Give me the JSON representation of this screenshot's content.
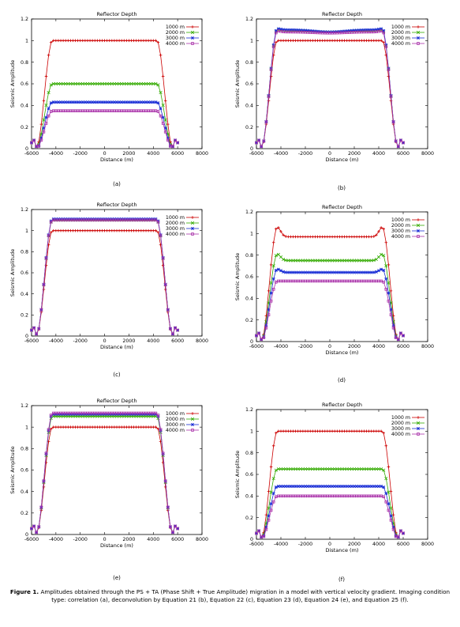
{
  "caption": {
    "label": "Figure 1.",
    "text": "Amplitudes obtained through the PS + TA (Phase Shift + True Amplitude) migration in a model with vertical velocity gradient. Imaging condition type: correlation (a), deconvolution by Equation 21 (b), Equation 22 (c), Equation 23 (d), Equation 24 (e), and Equation 25 (f)."
  },
  "colors": {
    "1000 m": "#cc0000",
    "2000 m": "#33aa00",
    "3000 m": "#1a2ed6",
    "4000 m": "#aa33aa"
  },
  "chart_data": [
    {
      "panel_label": "(a)",
      "type": "line",
      "title": "Reflector Depth",
      "xlabel": "Distance (m)",
      "ylabel": "Seismic Amplitude",
      "xlim": [
        -6000,
        8000
      ],
      "ylim": [
        0,
        1.2
      ],
      "xticks": [
        -6000,
        -4000,
        -2000,
        0,
        2000,
        4000,
        6000,
        8000
      ],
      "yticks": [
        0,
        0.2,
        0.4,
        0.6,
        0.8,
        1,
        1.2
      ],
      "legend_position": "top-right",
      "series": [
        {
          "name": "1000 m",
          "plateau": 1.0,
          "edge_peak": 0,
          "center_dip": 0
        },
        {
          "name": "2000 m",
          "plateau": 0.6,
          "edge_peak": 0,
          "center_dip": 0
        },
        {
          "name": "3000 m",
          "plateau": 0.43,
          "edge_peak": 0,
          "center_dip": 0
        },
        {
          "name": "4000 m",
          "plateau": 0.35,
          "edge_peak": 0,
          "center_dip": 0
        }
      ]
    },
    {
      "panel_label": "(b)",
      "type": "line",
      "title": "Reflector Depth",
      "xlabel": "Distance (m)",
      "ylabel": "Seismic Amplitude",
      "xlim": [
        -6000,
        8000
      ],
      "ylim": [
        0,
        1.2
      ],
      "xticks": [
        -6000,
        -4000,
        -2000,
        0,
        2000,
        4000,
        6000,
        8000
      ],
      "yticks": [
        0,
        0.2,
        0.4,
        0.6,
        0.8,
        1,
        1.2
      ],
      "legend_position": "top-right",
      "series": [
        {
          "name": "1000 m",
          "plateau": 1.0,
          "edge_peak": 0,
          "center_dip": 0
        },
        {
          "name": "2000 m",
          "plateau": 1.09,
          "edge_peak": 0.01,
          "center_dip": 0.01
        },
        {
          "name": "3000 m",
          "plateau": 1.1,
          "edge_peak": 0.01,
          "center_dip": 0.02
        },
        {
          "name": "4000 m",
          "plateau": 1.08,
          "edge_peak": 0.01,
          "center_dip": 0.01
        }
      ]
    },
    {
      "panel_label": "(c)",
      "type": "line",
      "title": "Reflector Depth",
      "xlabel": "Distance (m)",
      "ylabel": "Seismic Amplitude",
      "xlim": [
        -6000,
        8000
      ],
      "ylim": [
        0,
        1.2
      ],
      "xticks": [
        -6000,
        -4000,
        -2000,
        0,
        2000,
        4000,
        6000,
        8000
      ],
      "yticks": [
        0,
        0.2,
        0.4,
        0.6,
        0.8,
        1,
        1.2
      ],
      "legend_position": "top-right",
      "series": [
        {
          "name": "1000 m",
          "plateau": 1.0,
          "edge_peak": 0,
          "center_dip": 0
        },
        {
          "name": "2000 m",
          "plateau": 1.1,
          "edge_peak": 0,
          "center_dip": 0
        },
        {
          "name": "3000 m",
          "plateau": 1.11,
          "edge_peak": 0,
          "center_dip": 0
        },
        {
          "name": "4000 m",
          "plateau": 1.1,
          "edge_peak": 0,
          "center_dip": 0
        }
      ]
    },
    {
      "panel_label": "(d)",
      "type": "line",
      "title": "Reflector Depth",
      "xlabel": "Distance (m)",
      "ylabel": "Seismic Amplitude",
      "xlim": [
        -6000,
        8000
      ],
      "ylim": [
        0,
        1.2
      ],
      "xticks": [
        -6000,
        -4000,
        -2000,
        0,
        2000,
        4000,
        6000,
        8000
      ],
      "yticks": [
        0,
        0.2,
        0.4,
        0.6,
        0.8,
        1,
        1.2
      ],
      "legend_position": "top-right",
      "series": [
        {
          "name": "1000 m",
          "plateau": 0.97,
          "edge_peak": 0.09,
          "center_dip": 0
        },
        {
          "name": "2000 m",
          "plateau": 0.75,
          "edge_peak": 0.06,
          "center_dip": 0
        },
        {
          "name": "3000 m",
          "plateau": 0.64,
          "edge_peak": 0.03,
          "center_dip": 0
        },
        {
          "name": "4000 m",
          "plateau": 0.56,
          "edge_peak": 0.0,
          "center_dip": 0
        }
      ]
    },
    {
      "panel_label": "(e)",
      "type": "line",
      "title": "Reflector Depth",
      "xlabel": "Distance (m)",
      "ylabel": "Seismic Amplitude",
      "xlim": [
        -6000,
        8000
      ],
      "ylim": [
        0,
        1.2
      ],
      "xticks": [
        -6000,
        -4000,
        -2000,
        0,
        2000,
        4000,
        6000,
        8000
      ],
      "yticks": [
        0,
        0.2,
        0.4,
        0.6,
        0.8,
        1,
        1.2
      ],
      "legend_position": "top-right",
      "series": [
        {
          "name": "1000 m",
          "plateau": 1.0,
          "edge_peak": 0,
          "center_dip": 0
        },
        {
          "name": "2000 m",
          "plateau": 1.1,
          "edge_peak": 0,
          "center_dip": 0
        },
        {
          "name": "3000 m",
          "plateau": 1.12,
          "edge_peak": 0,
          "center_dip": 0
        },
        {
          "name": "4000 m",
          "plateau": 1.13,
          "edge_peak": 0,
          "center_dip": 0
        }
      ]
    },
    {
      "panel_label": "(f)",
      "type": "line",
      "title": "Reflector Depth",
      "xlabel": "Distance (m)",
      "ylabel": "Seismic Amplitude",
      "xlim": [
        -6000,
        8000
      ],
      "ylim": [
        0,
        1.2
      ],
      "xticks": [
        -6000,
        -4000,
        -2000,
        0,
        2000,
        4000,
        6000,
        8000
      ],
      "yticks": [
        0,
        0.2,
        0.4,
        0.6,
        0.8,
        1,
        1.2
      ],
      "legend_position": "top-right",
      "series": [
        {
          "name": "1000 m",
          "plateau": 1.0,
          "edge_peak": 0,
          "center_dip": 0
        },
        {
          "name": "2000 m",
          "plateau": 0.65,
          "edge_peak": 0,
          "center_dip": 0
        },
        {
          "name": "3000 m",
          "plateau": 0.49,
          "edge_peak": 0,
          "center_dip": 0
        },
        {
          "name": "4000 m",
          "plateau": 0.4,
          "edge_peak": 0,
          "center_dip": 0
        }
      ]
    }
  ]
}
